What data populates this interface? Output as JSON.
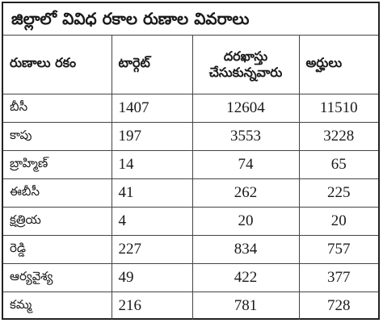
{
  "title": "జిల్లాలో వివిధ రకాల రుణాల వివరాలు",
  "table": {
    "headers": [
      "రుణాలు రకం",
      "టార్గెట్",
      "దరఖాస్తు చేసుకున్నవారు",
      "అర్హులు"
    ],
    "rows": [
      [
        "బీసీ",
        "1407",
        "12604",
        "11510"
      ],
      [
        "కాపు",
        "197",
        "3553",
        "3228"
      ],
      [
        "బ్రాహ్మిణ్",
        "14",
        "74",
        "65"
      ],
      [
        "ఈబీసీ",
        "41",
        "262",
        "225"
      ],
      [
        "క్షత్రియ",
        "4",
        "20",
        "20"
      ],
      [
        "రెడ్డి",
        "227",
        "834",
        "757"
      ],
      [
        "ఆర్యవైశ్య",
        "49",
        "422",
        "377"
      ],
      [
        "కమ్మ",
        "216",
        "781",
        "728"
      ]
    ]
  }
}
